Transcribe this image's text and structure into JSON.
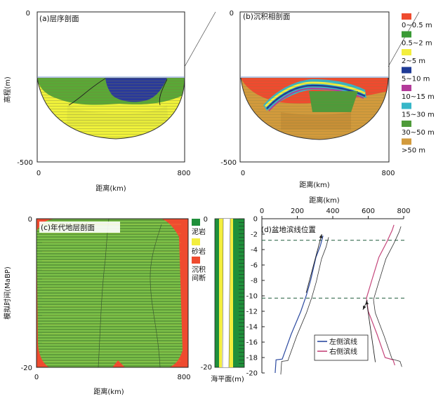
{
  "panel_a": {
    "title": "(a)层序剖面",
    "ylabel": "高程(m)",
    "xlabel": "距离(km)",
    "y_top": "0",
    "y_bottom": "-500",
    "x_left": "0",
    "x_right": "800",
    "colors": {
      "sand": "#f0f23a",
      "mud": "#5aa836",
      "deep": "#2a3a9a"
    }
  },
  "panel_b": {
    "title": "(b)沉积相剖面",
    "xlabel": "距离(km)",
    "y_top": "0",
    "y_bottom": "-500",
    "x_left": "0",
    "x_right": "800",
    "legend": [
      {
        "label": "0~0.5 m",
        "color": "#ef4b2f"
      },
      {
        "label": "0.5~2 m",
        "color": "#3a9a35"
      },
      {
        "label": "2~5 m",
        "color": "#f3ee3e"
      },
      {
        "label": "5~10 m",
        "color": "#1f3b96"
      },
      {
        "label": "10~15 m",
        "color": "#b33b9a"
      },
      {
        "label": "15~30 m",
        "color": "#36b7c8"
      },
      {
        "label": "30~50 m",
        "color": "#4f9b3a"
      },
      {
        "label": ">50 m",
        "color": "#d29a3c"
      }
    ]
  },
  "panel_c": {
    "title": "(c)年代地层剖面",
    "ylabel": "模拟时间(MaBP)",
    "xlabel": "距离(km)",
    "y_top": "0",
    "y_bottom": "-20",
    "x_left": "0",
    "x_right": "800",
    "legend": [
      {
        "label": "泥岩",
        "color": "#1f8f3a"
      },
      {
        "label": "砂岩",
        "color": "#f3ee3e"
      },
      {
        "label": "沉积间断",
        "color": "#ef4b2f"
      }
    ],
    "sea_level_label": "海平面(m)"
  },
  "panel_d": {
    "title": "(d)盆地滨线位置",
    "xlabel": "距离(km)",
    "x_ticks": [
      "0",
      "200",
      "400",
      "600",
      "800"
    ],
    "y_ticks": [
      "0",
      "-2",
      "-4",
      "-6",
      "-8",
      "-10",
      "-12",
      "-14",
      "-16",
      "-18",
      "-20"
    ],
    "legend": [
      {
        "label": "左侧滨线",
        "color": "#2c4aa0"
      },
      {
        "label": "右侧滨线",
        "color": "#c4457a"
      }
    ]
  },
  "chart_data": [
    {
      "type": "line",
      "title": "(d)盆地滨线位置",
      "xlabel": "距离(km)",
      "xlim": [
        0,
        800
      ],
      "ylim": [
        -20,
        0
      ],
      "series": [
        {
          "name": "左侧滨线",
          "points": [
            [
              75,
              -20
            ],
            [
              80,
              -18.3
            ],
            [
              115,
              -18.2
            ],
            [
              165,
              -15
            ],
            [
              220,
              -12
            ],
            [
              250,
              -10
            ],
            [
              275,
              -8
            ],
            [
              305,
              -5
            ],
            [
              330,
              -3.5
            ],
            [
              345,
              -2.2
            ]
          ]
        },
        {
          "name": "右侧滨线",
          "points": [
            [
              750,
              -19
            ],
            [
              740,
              -18.3
            ],
            [
              695,
              -18
            ],
            [
              650,
              -15
            ],
            [
              600,
              -12
            ],
            [
              590,
              -10.3
            ],
            [
              620,
              -8
            ],
            [
              660,
              -5
            ],
            [
              705,
              -3
            ],
            [
              735,
              -1.5
            ],
            [
              745,
              -0.8
            ]
          ]
        }
      ]
    }
  ]
}
